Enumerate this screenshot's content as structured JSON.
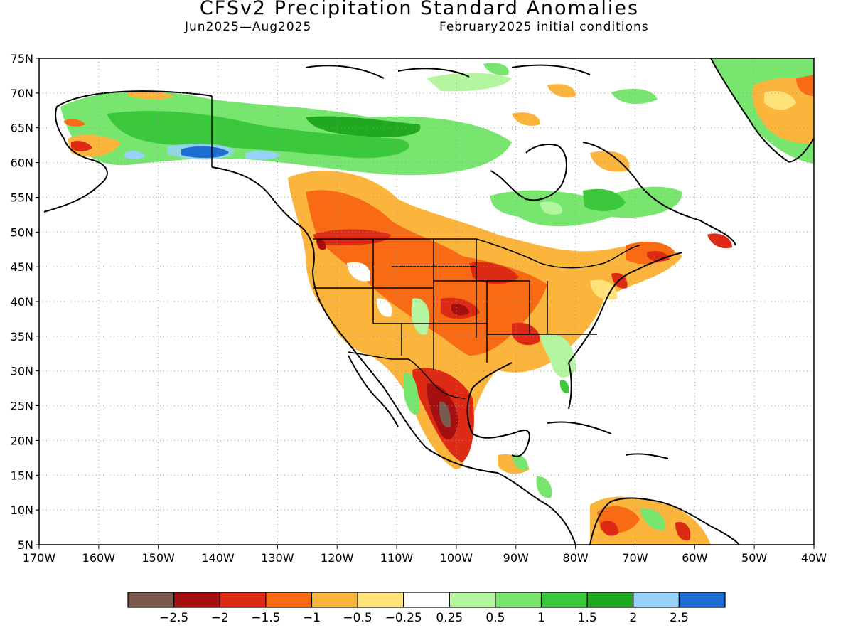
{
  "title": "CFSv2 Precipitation Standard Anomalies",
  "period": "Jun2025—Aug2025",
  "init": "February2025 initial conditions",
  "axes": {
    "lon_ticks": [
      "170W",
      "160W",
      "150W",
      "140W",
      "130W",
      "120W",
      "110W",
      "100W",
      "90W",
      "80W",
      "70W",
      "60W",
      "50W",
      "40W"
    ],
    "lat_ticks": [
      "75N",
      "70N",
      "65N",
      "60N",
      "55N",
      "50N",
      "45N",
      "40N",
      "35N",
      "30N",
      "25N",
      "20N",
      "15N",
      "10N",
      "5N"
    ],
    "lon_range": [
      -170,
      -40
    ],
    "lat_range": [
      5,
      75
    ],
    "grid": true
  },
  "colorbar": {
    "colors": [
      "#7a5a4e",
      "#a50f0f",
      "#dc2a14",
      "#f86a14",
      "#fbb43c",
      "#ffe27a",
      "#ffffff",
      "#b4f5a0",
      "#78e66e",
      "#3cc83c",
      "#20a820",
      "#96d2fa",
      "#1e6ed2"
    ],
    "labels": [
      "−2.5",
      "−2",
      "−1.5",
      "−1",
      "−0.5",
      "−0.25",
      "0.25",
      "0.5",
      "1",
      "1.5",
      "2",
      "2.5"
    ]
  },
  "colors": {
    "dry3": "#a50f0f",
    "dry2": "#dc2a14",
    "dry1": "#f86a14",
    "dry05": "#fbb43c",
    "dry025": "#ffe27a",
    "wet025": "#b4f5a0",
    "wet05": "#78e66e",
    "wet1": "#3cc83c",
    "wet2": "#20a820",
    "wet25": "#96d2fa",
    "wet3": "#1e6ed2",
    "extreme_dry": "#7a5a4e"
  }
}
